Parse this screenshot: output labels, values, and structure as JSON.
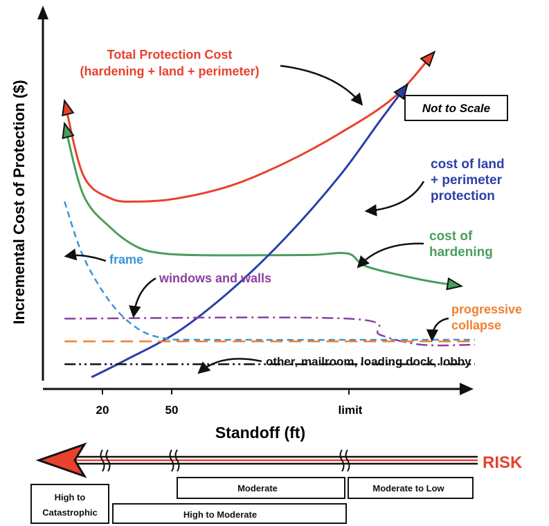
{
  "chart_data": {
    "type": "line",
    "title": "",
    "xlabel": "Standoff (ft)",
    "ylabel": "Incremental Cost of Protection ($)",
    "x_ticks": [
      "20",
      "50",
      "limit"
    ],
    "scale_note": "Not to Scale",
    "series": [
      {
        "name": "Total Protection Cost (hardening + land + perimeter)",
        "color": "#e8412c",
        "style": "solid",
        "points": [
          [
            8,
            85
          ],
          [
            15,
            62
          ],
          [
            25,
            55
          ],
          [
            35,
            54
          ],
          [
            50,
            55
          ],
          [
            70,
            59
          ],
          [
            90,
            66
          ],
          [
            110,
            75
          ],
          [
            130,
            86
          ],
          [
            145,
            100
          ]
        ]
      },
      {
        "name": "cost of hardening",
        "color": "#4a9e5c",
        "style": "solid",
        "points": [
          [
            8,
            78
          ],
          [
            15,
            56
          ],
          [
            25,
            46
          ],
          [
            35,
            40
          ],
          [
            45,
            38
          ],
          [
            60,
            37.5
          ],
          [
            80,
            37.5
          ],
          [
            100,
            37.6
          ],
          [
            113,
            38
          ],
          [
            120,
            34
          ],
          [
            140,
            30
          ],
          [
            155,
            28
          ]
        ]
      },
      {
        "name": "cost of land + perimeter protection",
        "color": "#2b3fa8",
        "style": "solid",
        "points": [
          [
            18,
            0
          ],
          [
            30,
            5
          ],
          [
            50,
            14
          ],
          [
            70,
            27
          ],
          [
            90,
            43
          ],
          [
            110,
            62
          ],
          [
            125,
            79
          ],
          [
            135,
            90
          ]
        ]
      },
      {
        "name": "frame",
        "color": "#3a94d6",
        "style": "dashed",
        "points": [
          [
            8,
            54
          ],
          [
            15,
            37
          ],
          [
            25,
            23
          ],
          [
            35,
            15
          ],
          [
            45,
            12
          ],
          [
            60,
            11.5
          ],
          [
            160,
            11.5
          ]
        ]
      },
      {
        "name": "windows and walls",
        "color": "#8a3fa0",
        "style": "dashdot",
        "points": [
          [
            8,
            18
          ],
          [
            113,
            18
          ],
          [
            125,
            13
          ],
          [
            140,
            10
          ],
          [
            160,
            10
          ]
        ]
      },
      {
        "name": "progressive collapse",
        "color": "#f08030",
        "style": "longdash",
        "points": [
          [
            8,
            11
          ],
          [
            160,
            11
          ]
        ]
      },
      {
        "name": "other, mailroom, loading dock, lobby",
        "color": "#111111",
        "style": "dashdotdot",
        "points": [
          [
            8,
            4
          ],
          [
            160,
            4
          ]
        ]
      }
    ],
    "annotations": {
      "total_l1": "Total Protection Cost",
      "total_l2": "(hardening + land + perimeter)",
      "land_l1": "cost of land",
      "land_l2": "+ perimeter",
      "land_l3": "protection",
      "hard_l1": "cost of",
      "hard_l2": "hardening",
      "frame": "frame",
      "windows": "windows and walls",
      "prog_l1": "progressive",
      "prog_l2": "collapse",
      "other": "other, mailroom, loading dock, lobby"
    }
  },
  "risk": {
    "label": "RISK",
    "levels": {
      "high_cat_l1": "High to",
      "high_cat_l2": "Catastrophic",
      "high_mod": "High to Moderate",
      "moderate": "Moderate",
      "mod_low": "Moderate to Low"
    }
  },
  "colors": {
    "total": "#e8412c",
    "hardening": "#4a9e5c",
    "land": "#2b3fa8",
    "frame": "#3a94d6",
    "windows": "#8a3fa0",
    "progressive": "#f08030",
    "other": "#111111",
    "risk": "#e8412c"
  }
}
